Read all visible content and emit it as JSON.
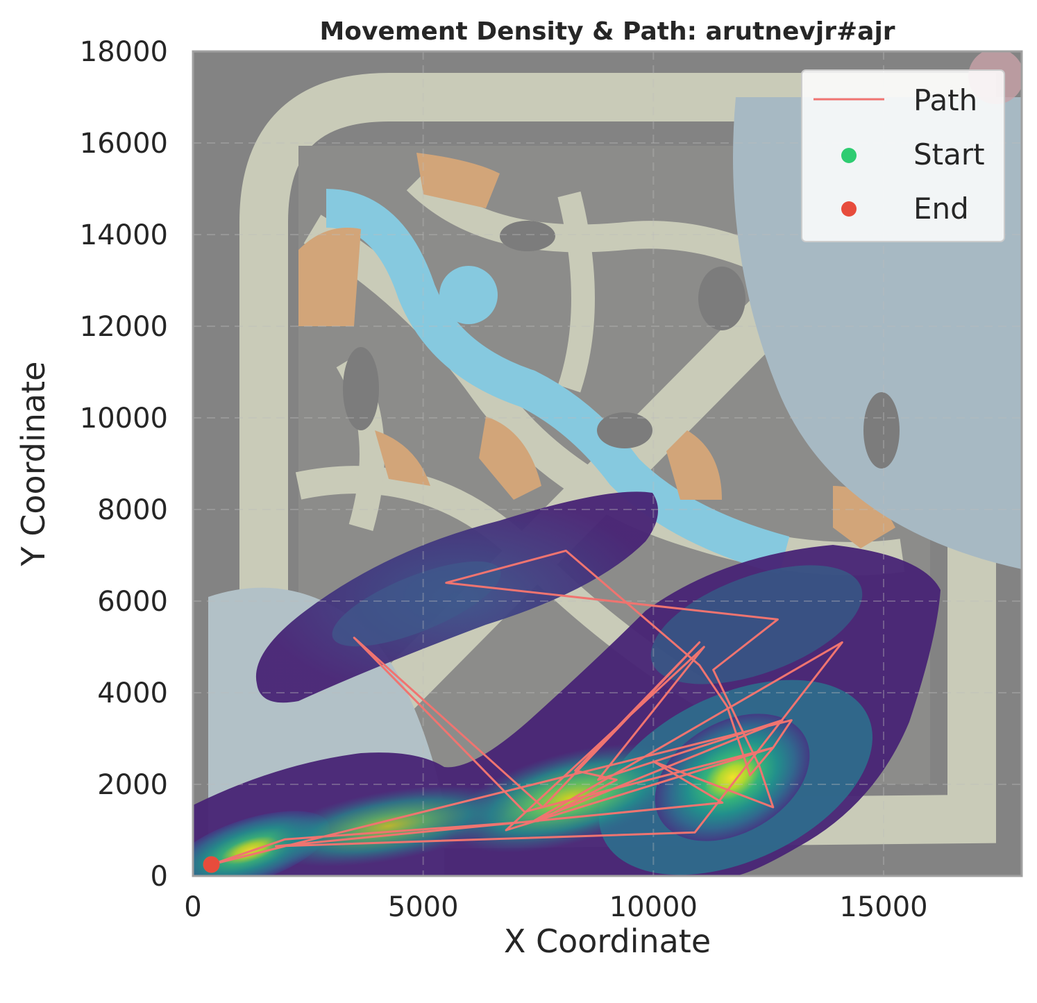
{
  "chart_data": {
    "type": "scatter",
    "title": "Movement Density & Path: arutnevjr#ajr",
    "xlabel": "X Coordinate",
    "ylabel": "Y Coordinate",
    "xlim": [
      0,
      18000
    ],
    "ylim": [
      0,
      18000
    ],
    "x_ticks": [
      "0",
      "5000",
      "10000",
      "15000"
    ],
    "y_ticks": [
      "0",
      "2000",
      "4000",
      "6000",
      "8000",
      "10000",
      "12000",
      "14000",
      "16000",
      "18000"
    ],
    "grid": true,
    "legend_position": "top-right",
    "background": "game map (Summoner's Rift style) overlaid with a movement density heatmap (viridis)",
    "density_colormap": "viridis",
    "colors": {
      "path": "#f07470",
      "start": "#2ecc71",
      "end": "#e74c3c",
      "grid": "#bdbdbd"
    },
    "series": [
      {
        "name": "Path",
        "kind": "line",
        "points": [
          [
            400,
            250
          ],
          [
            2000,
            800
          ],
          [
            7500,
            1200
          ],
          [
            9200,
            2100
          ],
          [
            8300,
            2300
          ],
          [
            11000,
            5100
          ],
          [
            7600,
            1500
          ],
          [
            3500,
            5200
          ],
          [
            7200,
            1400
          ],
          [
            12600,
            2800
          ],
          [
            6800,
            1000
          ],
          [
            11100,
            5000
          ],
          [
            8800,
            2100
          ],
          [
            12800,
            3400
          ],
          [
            7400,
            1200
          ],
          [
            14100,
            5100
          ],
          [
            10900,
            950
          ],
          [
            1800,
            650
          ],
          [
            11500,
            1600
          ],
          [
            10000,
            2500
          ],
          [
            12600,
            1500
          ],
          [
            12300,
            2400
          ],
          [
            11300,
            4500
          ],
          [
            12700,
            5600
          ],
          [
            5500,
            6400
          ],
          [
            8100,
            7100
          ],
          [
            11000,
            4600
          ],
          [
            11600,
            3700
          ],
          [
            12100,
            2200
          ],
          [
            12600,
            2800
          ],
          [
            13000,
            3400
          ],
          [
            400,
            250
          ]
        ]
      },
      {
        "name": "Start",
        "kind": "point",
        "points": [
          [
            400,
            250
          ]
        ]
      },
      {
        "name": "End",
        "kind": "point",
        "points": [
          [
            400,
            250
          ]
        ]
      }
    ],
    "density_hotspots": [
      {
        "x": 11400,
        "y": 2000,
        "intensity": 1.0
      },
      {
        "x": 1700,
        "y": 700,
        "intensity": 0.85
      },
      {
        "x": 8300,
        "y": 2200,
        "intensity": 0.7
      },
      {
        "x": 6500,
        "y": 6500,
        "intensity": 0.35
      }
    ]
  }
}
